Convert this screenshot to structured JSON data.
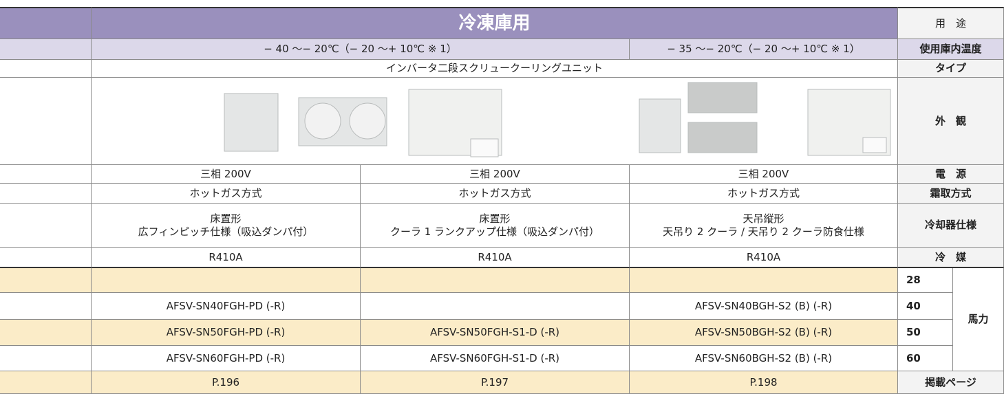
{
  "title": "冷凍庫用",
  "usage_label": "用　途",
  "rows": [
    {
      "label": "使用庫内温度",
      "cells": [
        "− 40 〜− 20℃（− 20 〜+ 10℃ ※ 1）",
        "− 35 〜− 20℃（− 20 〜+ 10℃ ※ 1）"
      ]
    },
    {
      "label": "タイプ",
      "cells": [
        "インバータ二段スクリュークーリングユニット"
      ]
    },
    {
      "label": "外　観",
      "cells": []
    },
    {
      "label": "電　源",
      "cells": [
        "三相 200V",
        "三相 200V",
        "三相 200V"
      ]
    },
    {
      "label": "霜取方式",
      "cells": [
        "ホットガス方式",
        "ホットガス方式",
        "ホットガス方式"
      ]
    },
    {
      "label": "冷却器仕様",
      "cells": [
        "床置形\n広フィンピッチ仕様（吸込ダンパ付）",
        "床置形\nクーラ 1 ランクアップ仕様（吸込ダンパ付）",
        "天吊縦形\n天吊り 2 クーラ / 天吊り 2 クーラ防食仕様"
      ]
    },
    {
      "label": "冷　媒",
      "cells": [
        "R410A",
        "R410A",
        "R410A"
      ]
    }
  ],
  "horsepower": {
    "label": "馬力",
    "rows": [
      {
        "hp": 28,
        "cells": [
          null,
          null,
          null
        ]
      },
      {
        "hp": 40,
        "cells": [
          "AFSV-SN40FGH-PD (-R)",
          null,
          "AFSV-SN40BGH-S2 (B) (-R)"
        ]
      },
      {
        "hp": 50,
        "cells": [
          "AFSV-SN50FGH-PD (-R)",
          "AFSV-SN50FGH-S1-D (-R)",
          "AFSV-SN50BGH-S2 (B) (-R)"
        ]
      },
      {
        "hp": 60,
        "cells": [
          "AFSV-SN60FGH-PD (-R)",
          "AFSV-SN60FGH-S1-D (-R)",
          "AFSV-SN60BGH-S2 (B) (-R)"
        ]
      }
    ]
  },
  "page_row": {
    "label": "掲載ページ",
    "cells": [
      "P.196",
      "P.197",
      "P.198"
    ]
  }
}
